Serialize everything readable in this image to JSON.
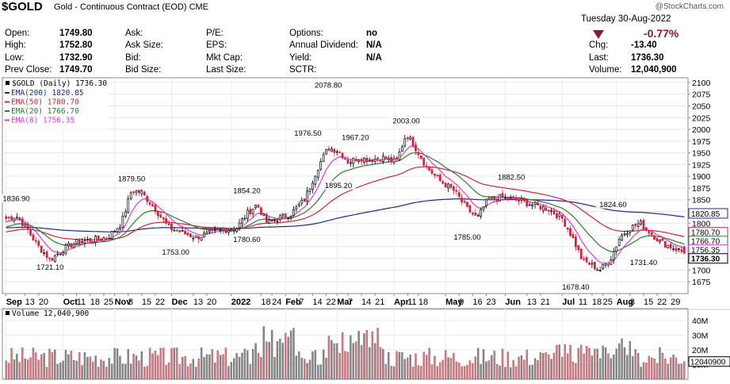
{
  "header": {
    "symbol": "$GOLD",
    "description": "Gold - Continuous Contract (EOD)",
    "exchange": "CME",
    "watermark": "@StockCharts.com",
    "date": "Tuesday  30-Aug-2022",
    "change_pct": "-0.77%",
    "colors": {
      "down": "#8b1a2b"
    }
  },
  "quote": {
    "col1": [
      {
        "label": "Open:",
        "value": "1749.80"
      },
      {
        "label": "High:",
        "value": "1752.80"
      },
      {
        "label": "Low:",
        "value": "1732.90"
      },
      {
        "label": "Prev Close:",
        "value": "1749.70"
      }
    ],
    "col2": [
      {
        "label": "Ask:",
        "value": ""
      },
      {
        "label": "Ask Size:",
        "value": ""
      },
      {
        "label": "Bid:",
        "value": ""
      },
      {
        "label": "Bid Size:",
        "value": ""
      }
    ],
    "col3": [
      {
        "label": "P/E:",
        "value": ""
      },
      {
        "label": "EPS:",
        "value": ""
      },
      {
        "label": "Mkt Cap:",
        "value": ""
      },
      {
        "label": "Last Size:",
        "value": ""
      }
    ],
    "col4": [
      {
        "label": "Options:",
        "value": "no"
      },
      {
        "label": "Annual Dividend:",
        "value": "N/A"
      },
      {
        "label": "Yield:",
        "value": "N/A"
      },
      {
        "label": "SCTR:",
        "value": ""
      }
    ],
    "col5": [
      {
        "label": "Chg:",
        "value": "-13.40"
      },
      {
        "label": "Last:",
        "value": "1736.30"
      },
      {
        "label": "Volume:",
        "value": "12,040,900"
      }
    ]
  },
  "chart_data": {
    "type": "candlestick",
    "legend": {
      "price": "$GOLD (Daily) 1736.30",
      "items": [
        {
          "name": "EMA(200)",
          "value": "1820.85",
          "color": "#1b2a8c"
        },
        {
          "name": "EMA(50)",
          "value": "1780.70",
          "color": "#c8283c"
        },
        {
          "name": "EMA(20)",
          "value": "1766.70",
          "color": "#2e7d2e"
        },
        {
          "name": "EMA(8)",
          "value": "1756.35",
          "color": "#e03ad6"
        }
      ]
    },
    "price_axis": {
      "ylim": [
        1650,
        2110
      ],
      "ticks": [
        1675,
        1700,
        1725,
        1750,
        1775,
        1800,
        1825,
        1850,
        1875,
        1900,
        1925,
        1950,
        1975,
        2000,
        2025,
        2050,
        2075,
        2100
      ],
      "tick_labels": [
        "1675",
        "1700",
        "1725",
        "1750",
        "1775",
        "1800",
        "1825",
        "1850",
        "1875",
        "1900",
        "1925",
        "1950",
        "1975",
        "2000",
        "2025",
        "2050",
        "2075",
        "2100"
      ]
    },
    "price_tags": [
      {
        "label": "1820.85",
        "value": 1820.85,
        "color": "#1b2a8c"
      },
      {
        "label": "1780.70",
        "value": 1780.7,
        "color": "#c8283c"
      },
      {
        "label": "1766.70",
        "value": 1766.7,
        "color": "#2e7d2e"
      },
      {
        "label": "1756.35",
        "value": 1756.35,
        "color": "#e03ad6"
      },
      {
        "label": "1736.30",
        "value": 1736.3,
        "color": "#000000"
      }
    ],
    "annotations": [
      {
        "label": "1836.90",
        "day": 3,
        "value": 1836.9
      },
      {
        "label": "1721.10",
        "day": 13,
        "value": 1721.1
      },
      {
        "label": "1879.50",
        "day": 37,
        "value": 1879.5
      },
      {
        "label": "1753.00",
        "day": 50,
        "value": 1753.0
      },
      {
        "label": "1854.20",
        "day": 71,
        "value": 1854.2
      },
      {
        "label": "1780.60",
        "day": 71,
        "value": 1780.6
      },
      {
        "label": "1976.50",
        "day": 89,
        "value": 1976.5
      },
      {
        "label": "2078.80",
        "day": 95,
        "value": 2078.8
      },
      {
        "label": "1895.20",
        "day": 98,
        "value": 1895.2
      },
      {
        "label": "1967.20",
        "day": 103,
        "value": 1967.2
      },
      {
        "label": "2003.00",
        "day": 118,
        "value": 2003.0
      },
      {
        "label": "1785.00",
        "day": 136,
        "value": 1785.0
      },
      {
        "label": "1882.50",
        "day": 149,
        "value": 1882.5
      },
      {
        "label": "1678.40",
        "day": 168,
        "value": 1678.4
      },
      {
        "label": "1824.60",
        "day": 179,
        "value": 1824.6
      },
      {
        "label": "1731.40",
        "day": 188,
        "value": 1731.4
      }
    ],
    "x_axis": [
      {
        "label": "Sep",
        "day": 0,
        "bold": true
      },
      {
        "label": "13",
        "day": 7
      },
      {
        "label": "20",
        "day": 12
      },
      {
        "label": "Oct",
        "day": 21,
        "bold": true
      },
      {
        "label": "11",
        "day": 26
      },
      {
        "label": "18",
        "day": 31
      },
      {
        "label": "25",
        "day": 36
      },
      {
        "label": "Nov",
        "day": 40,
        "bold": true
      },
      {
        "label": "8",
        "day": 45
      },
      {
        "label": "15",
        "day": 50
      },
      {
        "label": "22",
        "day": 55
      },
      {
        "label": "Dec",
        "day": 61,
        "bold": true
      },
      {
        "label": "13",
        "day": 69
      },
      {
        "label": "20",
        "day": 74
      },
      {
        "label": "2022",
        "day": 83,
        "bold": true
      },
      {
        "label": "18",
        "day": 94
      },
      {
        "label": "24",
        "day": 98
      },
      {
        "label": "Feb",
        "day": 103,
        "bold": true
      },
      {
        "label": "7",
        "day": 108
      },
      {
        "label": "14",
        "day": 113
      },
      {
        "label": "22",
        "day": 118
      },
      {
        "label": "Mar",
        "day": 122,
        "bold": true
      },
      {
        "label": "7",
        "day": 126
      },
      {
        "label": "14",
        "day": 131
      },
      {
        "label": "21",
        "day": 136
      },
      {
        "label": "Apr",
        "day": 143,
        "bold": true
      },
      {
        "label": "11",
        "day": 148
      },
      {
        "label": "18",
        "day": 152
      },
      {
        "label": "May",
        "day": 162,
        "bold": true
      },
      {
        "label": "9",
        "day": 167
      },
      {
        "label": "16",
        "day": 172
      },
      {
        "label": "23",
        "day": 177
      },
      {
        "label": "Jun",
        "day": 184,
        "bold": true
      },
      {
        "label": "13",
        "day": 192
      },
      {
        "label": "21",
        "day": 197
      },
      {
        "label": "Jul",
        "day": 205,
        "bold": true
      },
      {
        "label": "11",
        "day": 211
      },
      {
        "label": "18",
        "day": 216
      },
      {
        "label": "25",
        "day": 220
      },
      {
        "label": "Aug",
        "day": 225,
        "bold": true
      },
      {
        "label": "8",
        "day": 230
      },
      {
        "label": "15",
        "day": 235
      },
      {
        "label": "22",
        "day": 240
      },
      {
        "label": "29",
        "day": 245
      }
    ],
    "x_day_count": 251,
    "key_points": [
      [
        0,
        1810
      ],
      [
        3,
        1815
      ],
      [
        6,
        1790
      ],
      [
        9,
        1755
      ],
      [
        13,
        1722
      ],
      [
        17,
        1745
      ],
      [
        21,
        1760
      ],
      [
        26,
        1765
      ],
      [
        30,
        1770
      ],
      [
        34,
        1800
      ],
      [
        37,
        1870
      ],
      [
        40,
        1865
      ],
      [
        44,
        1830
      ],
      [
        48,
        1790
      ],
      [
        52,
        1780
      ],
      [
        56,
        1770
      ],
      [
        60,
        1778
      ],
      [
        64,
        1785
      ],
      [
        68,
        1790
      ],
      [
        71,
        1820
      ],
      [
        74,
        1840
      ],
      [
        77,
        1800
      ],
      [
        80,
        1810
      ],
      [
        84,
        1820
      ],
      [
        88,
        1850
      ],
      [
        92,
        1920
      ],
      [
        95,
        1960
      ],
      [
        98,
        1955
      ],
      [
        101,
        1930
      ],
      [
        104,
        1940
      ],
      [
        107,
        1935
      ],
      [
        111,
        1940
      ],
      [
        115,
        1930
      ],
      [
        118,
        1990
      ],
      [
        120,
        1970
      ],
      [
        124,
        1920
      ],
      [
        128,
        1890
      ],
      [
        132,
        1870
      ],
      [
        136,
        1830
      ],
      [
        139,
        1810
      ],
      [
        142,
        1850
      ],
      [
        146,
        1855
      ],
      [
        150,
        1850
      ],
      [
        155,
        1840
      ],
      [
        160,
        1830
      ],
      [
        164,
        1810
      ],
      [
        167,
        1770
      ],
      [
        170,
        1720
      ],
      [
        173,
        1710
      ],
      [
        175,
        1700
      ],
      [
        178,
        1720
      ],
      [
        181,
        1770
      ],
      [
        184,
        1790
      ],
      [
        187,
        1800
      ],
      [
        190,
        1780
      ],
      [
        193,
        1760
      ],
      [
        196,
        1750
      ],
      [
        199,
        1740
      ],
      [
        200,
        1736
      ]
    ],
    "volume": {
      "legend": "Volume 12,040,900",
      "ylim": [
        0,
        48000000
      ],
      "ticks": [
        10000000,
        20000000,
        30000000,
        40000000
      ],
      "tick_labels": [
        "10M",
        "20M",
        "30M",
        "40M"
      ],
      "last_tag": "12040900"
    }
  }
}
